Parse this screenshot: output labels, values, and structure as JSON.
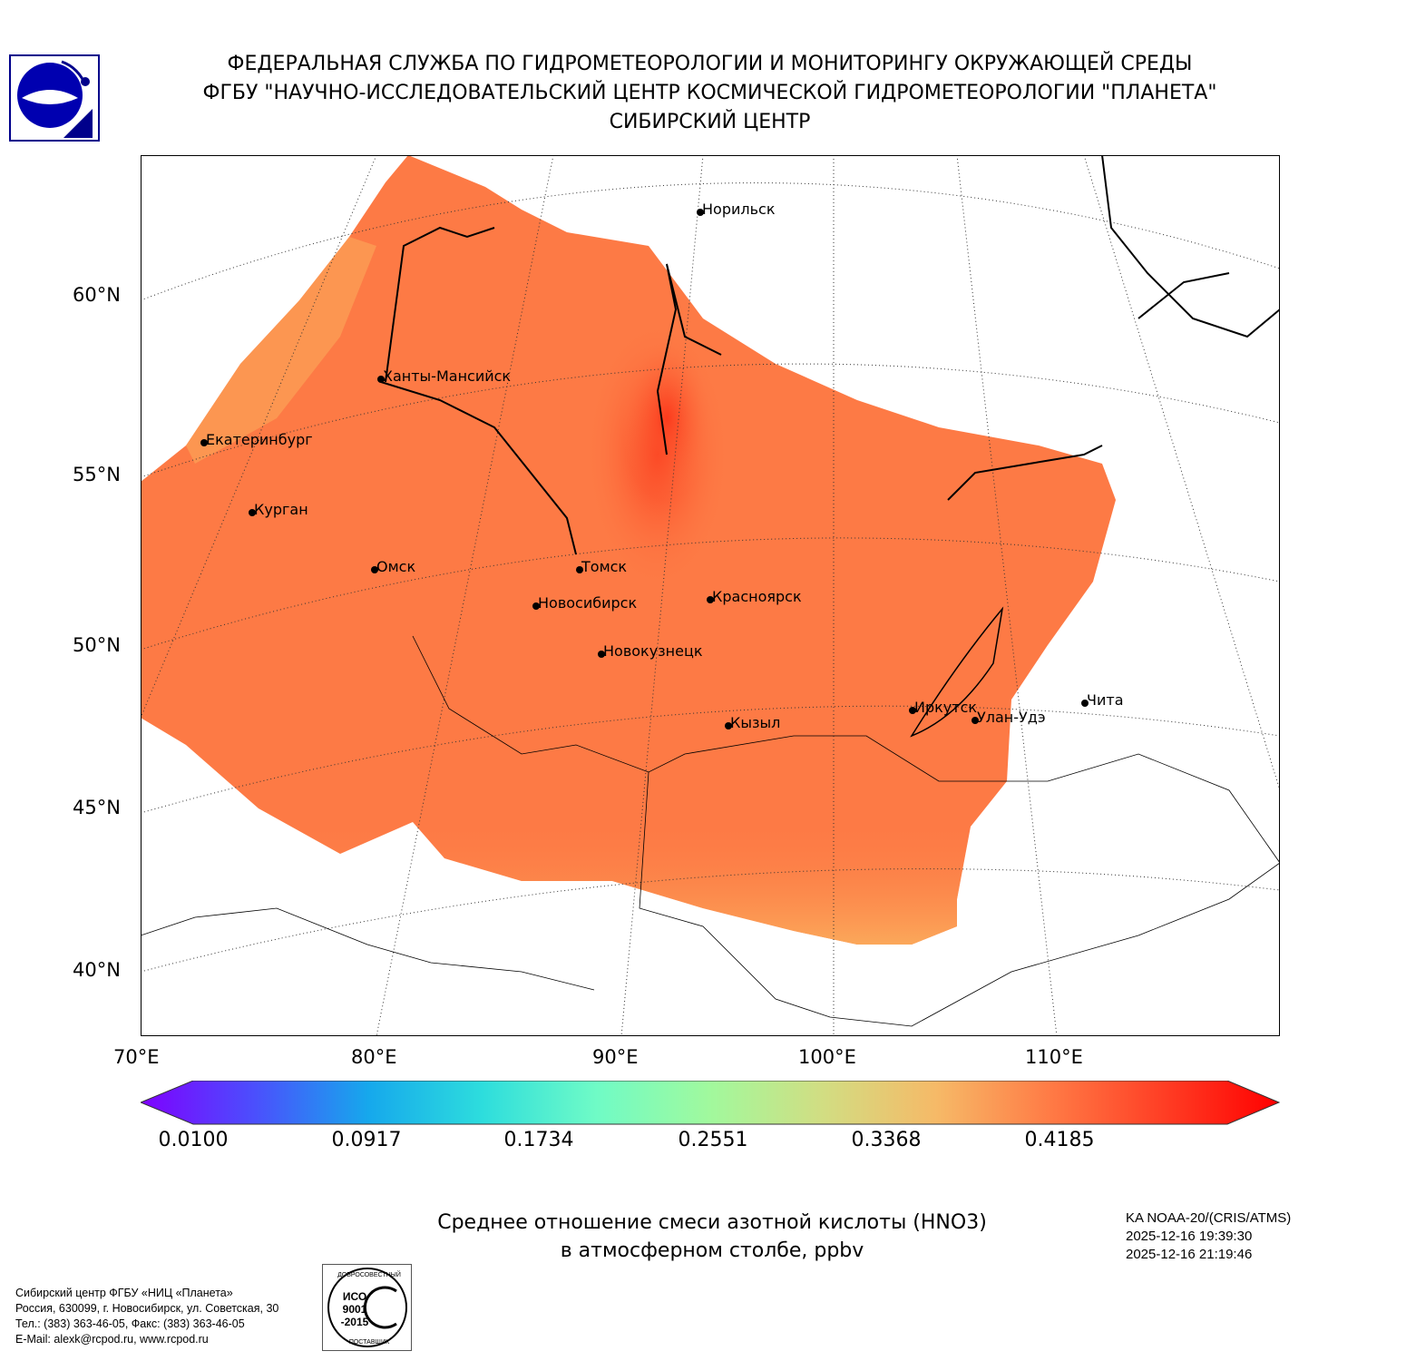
{
  "header": {
    "line1": "ФЕДЕРАЛЬНАЯ СЛУЖБА ПО ГИДРОМЕТЕОРОЛОГИИ И МОНИТОРИНГУ ОКРУЖАЮЩЕЙ СРЕДЫ",
    "line2": "ФГБУ \"НАУЧНО-ИССЛЕДОВАТЕЛЬСКИЙ ЦЕНТР КОСМИЧЕСКОЙ ГИДРОМЕТЕОРОЛОГИИ \"ПЛАНЕТА\"",
    "line3": "СИБИРСКИЙ ЦЕНТР",
    "logo_icon": "roshydromet-logo-icon"
  },
  "map": {
    "lat_labels": [
      "60°N",
      "55°N",
      "50°N",
      "45°N",
      "40°N"
    ],
    "lon_labels": [
      "70°E",
      "80°E",
      "90°E",
      "100°E",
      "110°E"
    ],
    "cities": [
      "Норильск",
      "Ханты-Мансийск",
      "Екатеринбург",
      "Курган",
      "Омск",
      "Томск",
      "Новосибирск",
      "Красноярск",
      "Новокузнецк",
      "Кызыл",
      "Иркутск",
      "Улан-Удэ",
      "Чита"
    ],
    "fill_colors": {
      "low": "#fba85a",
      "mid": "#fd7a45",
      "high": "#fc3a1c"
    }
  },
  "colorbar": {
    "ticks": [
      "0.0100",
      "0.0917",
      "0.1734",
      "0.2551",
      "0.3368",
      "0.4185"
    ],
    "colors": [
      "#7f00ff",
      "#4b4ffd",
      "#16a8ec",
      "#2ddddd",
      "#6ffbc6",
      "#a1f99d",
      "#d2dd82",
      "#f6b967",
      "#ff7a45",
      "#ff3d24",
      "#ff0000"
    ]
  },
  "title": {
    "line1": "Среднее отношение смеси азотной кислоты (HNO3)",
    "line2": "в атмосферном столбе, ppbv"
  },
  "satellite": {
    "name": "KA NOAA-20/(CRIS/ATMS)",
    "time_start": "2025-12-16 19:39:30",
    "time_end": "2025-12-16 21:19:46"
  },
  "footer": {
    "org": "Сибирский центр ФГБУ «НИЦ «Планета»",
    "address": "Россия, 630099, г. Новосибирск, ул. Советская, 30",
    "phone": "Тел.: (383) 363-46-05, Факс: (383) 363-46-05",
    "email": "E-Mail: alexk@rcpod.ru, www.rcpod.ru",
    "iso_stamp": {
      "top": "ДОБРОСОВЕСТНЫЙ",
      "center": "ИСО 9001 -2015",
      "bottom": "ПОСТАВЩИК"
    }
  }
}
